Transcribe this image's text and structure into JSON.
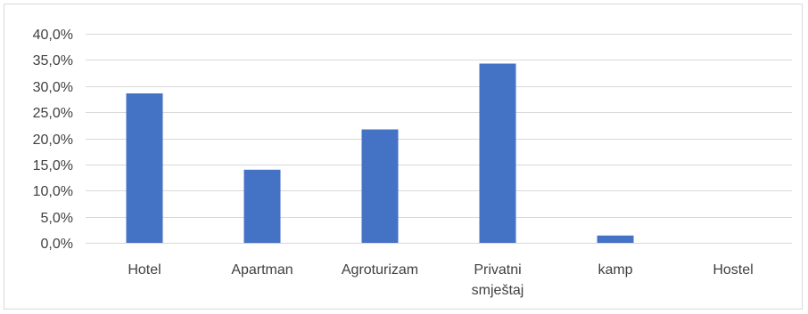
{
  "chart_data": {
    "type": "bar",
    "categories": [
      "Hotel",
      "Apartman",
      "Agroturizam",
      "Privatni smještaj",
      "kamp",
      "Hostel"
    ],
    "category_lines": [
      [
        "Hotel"
      ],
      [
        "Apartman"
      ],
      [
        "Agroturizam"
      ],
      [
        "Privatni",
        "smještaj"
      ],
      [
        "kamp"
      ],
      [
        "Hostel"
      ]
    ],
    "values": [
      28.6,
      14.0,
      21.7,
      34.3,
      1.4,
      0.0
    ],
    "ylim": [
      0,
      40
    ],
    "yticks": [
      0,
      5,
      10,
      15,
      20,
      25,
      30,
      35,
      40
    ],
    "ytick_labels": [
      "0,0%",
      "5,0%",
      "10,0%",
      "15,0%",
      "20,0%",
      "25,0%",
      "30,0%",
      "35,0%",
      "40,0%"
    ],
    "title": "",
    "xlabel": "",
    "ylabel": "",
    "grid": true,
    "legend": "none",
    "bar_color": "#4472C4",
    "grid_color": "#d9d9d9"
  }
}
